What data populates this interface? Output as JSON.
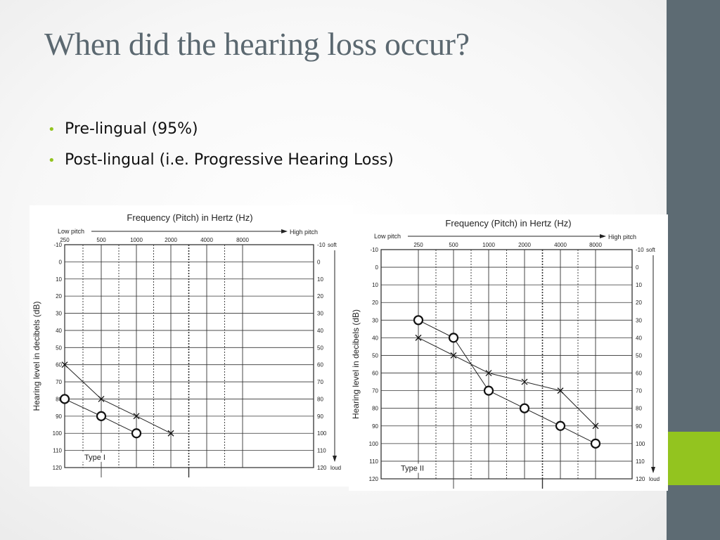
{
  "slide": {
    "title": "When did the hearing loss occur?",
    "bullets": [
      "Pre-lingual  (95%)",
      "Post-lingual (i.e. Progressive Hearing Loss)"
    ],
    "colors": {
      "sidebar": "#5d6b73",
      "accent": "#93c41f",
      "title": "#5b6870",
      "bullet": "#93c41f"
    }
  },
  "chart_data": [
    {
      "type": "line",
      "header": "Frequency (Pitch) in Hertz (Hz)",
      "low_label": "Low pitch",
      "high_label": "High pitch",
      "ylabel": "Hearing level in decibels (dB)",
      "x_ticks": [
        "250",
        "500",
        "1000",
        "2000",
        "4000",
        "8000"
      ],
      "y_ticks": [
        "-10",
        "0",
        "10",
        "20",
        "30",
        "40",
        "50",
        "60",
        "70",
        "80",
        "90",
        "100",
        "110",
        "120"
      ],
      "soft_label": "soft",
      "loud_label": "loud",
      "ylim": [
        -10,
        120
      ],
      "grid": true,
      "type_label": "Type I",
      "series": [
        {
          "marker": "x",
          "points": [
            [
              250,
              60
            ],
            [
              500,
              80
            ],
            [
              1000,
              90
            ],
            [
              2000,
              100
            ]
          ]
        },
        {
          "marker": "o",
          "points": [
            [
              250,
              80
            ],
            [
              500,
              90
            ],
            [
              1000,
              100
            ]
          ]
        }
      ]
    },
    {
      "type": "line",
      "header": "Frequency (Pitch) in Hertz (Hz)",
      "low_label": "Low pitch",
      "high_label": "High pitch",
      "ylabel": "Hearing level in decibels (dB)",
      "x_ticks": [
        "250",
        "500",
        "1000",
        "2000",
        "4000",
        "8000"
      ],
      "y_ticks": [
        "-10",
        "0",
        "10",
        "20",
        "30",
        "40",
        "50",
        "60",
        "70",
        "80",
        "90",
        "100",
        "110",
        "120"
      ],
      "soft_label": "soft",
      "loud_label": "loud",
      "ylim": [
        -10,
        120
      ],
      "grid": true,
      "type_label": "Type II",
      "series": [
        {
          "marker": "x",
          "points": [
            [
              250,
              40
            ],
            [
              500,
              50
            ],
            [
              1000,
              60
            ],
            [
              2000,
              65
            ],
            [
              4000,
              70
            ],
            [
              8000,
              90
            ]
          ]
        },
        {
          "marker": "o",
          "points": [
            [
              250,
              30
            ],
            [
              500,
              40
            ],
            [
              1000,
              70
            ],
            [
              2000,
              80
            ],
            [
              4000,
              90
            ],
            [
              8000,
              100
            ]
          ]
        }
      ]
    }
  ]
}
